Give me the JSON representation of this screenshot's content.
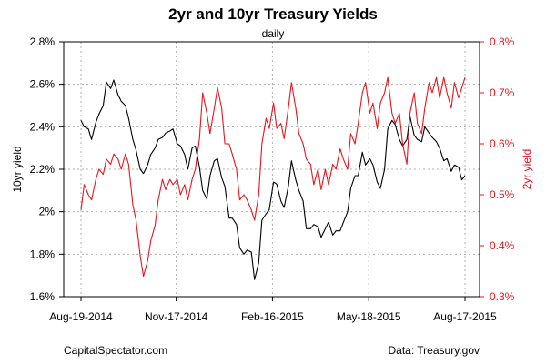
{
  "chart_data": {
    "type": "line",
    "title": "2yr and 10yr Treasury Yields",
    "subtitle": "daily",
    "x_start": "2014-08-19",
    "x_end": "2015-08-17",
    "x_ticks": [
      "Aug-19-2014",
      "Nov-17-2014",
      "Feb-16-2015",
      "May-18-2015",
      "Aug-17-2015"
    ],
    "y_left": {
      "label": "10yr yield",
      "lim": [
        1.6,
        2.8
      ],
      "ticks": [
        1.6,
        1.8,
        2.0,
        2.2,
        2.4,
        2.6,
        2.8
      ],
      "tick_labels": [
        "1.6%",
        "1.8%",
        "2%",
        "2.2%",
        "2.4%",
        "2.6%",
        "2.8%"
      ],
      "color": "#000000"
    },
    "y_right": {
      "label": "2yr yield",
      "lim": [
        0.3,
        0.8
      ],
      "ticks": [
        0.3,
        0.4,
        0.5,
        0.6,
        0.7,
        0.8
      ],
      "tick_labels": [
        "0.3%",
        "0.4%",
        "0.5%",
        "0.6%",
        "0.7%",
        "0.8%"
      ],
      "color": "#e8141c"
    },
    "grid": true,
    "series": [
      {
        "axis": "left",
        "color": "#000000",
        "x": [
          "2014-08-19",
          "2014-08-22",
          "2014-08-26",
          "2014-08-29",
          "2014-09-02",
          "2014-09-05",
          "2014-09-09",
          "2014-09-12",
          "2014-09-16",
          "2014-09-19",
          "2014-09-23",
          "2014-09-26",
          "2014-09-30",
          "2014-10-03",
          "2014-10-07",
          "2014-10-10",
          "2014-10-14",
          "2014-10-17",
          "2014-10-21",
          "2014-10-24",
          "2014-10-28",
          "2014-10-31",
          "2014-11-04",
          "2014-11-07",
          "2014-11-11",
          "2014-11-14",
          "2014-11-18",
          "2014-11-21",
          "2014-11-25",
          "2014-11-28",
          "2014-12-02",
          "2014-12-05",
          "2014-12-09",
          "2014-12-12",
          "2014-12-16",
          "2014-12-19",
          "2014-12-23",
          "2014-12-26",
          "2014-12-30",
          "2015-01-02",
          "2015-01-06",
          "2015-01-09",
          "2015-01-13",
          "2015-01-16",
          "2015-01-20",
          "2015-01-23",
          "2015-01-27",
          "2015-01-30",
          "2015-02-03",
          "2015-02-06",
          "2015-02-10",
          "2015-02-13",
          "2015-02-17",
          "2015-02-20",
          "2015-02-24",
          "2015-02-27",
          "2015-03-03",
          "2015-03-06",
          "2015-03-10",
          "2015-03-13",
          "2015-03-17",
          "2015-03-20",
          "2015-03-24",
          "2015-03-27",
          "2015-03-31",
          "2015-04-03",
          "2015-04-07",
          "2015-04-10",
          "2015-04-14",
          "2015-04-17",
          "2015-04-21",
          "2015-04-24",
          "2015-04-28",
          "2015-05-01",
          "2015-05-05",
          "2015-05-08",
          "2015-05-12",
          "2015-05-15",
          "2015-05-19",
          "2015-05-22",
          "2015-05-26",
          "2015-05-29",
          "2015-06-02",
          "2015-06-05",
          "2015-06-09",
          "2015-06-12",
          "2015-06-16",
          "2015-06-19",
          "2015-06-23",
          "2015-06-26",
          "2015-06-30",
          "2015-07-03",
          "2015-07-07",
          "2015-07-10",
          "2015-07-14",
          "2015-07-17",
          "2015-07-21",
          "2015-07-24",
          "2015-07-28",
          "2015-07-31",
          "2015-08-04",
          "2015-08-07",
          "2015-08-11",
          "2015-08-14",
          "2015-08-17"
        ],
        "values": [
          2.43,
          2.4,
          2.39,
          2.34,
          2.42,
          2.46,
          2.5,
          2.61,
          2.58,
          2.62,
          2.55,
          2.52,
          2.5,
          2.44,
          2.34,
          2.29,
          2.2,
          2.18,
          2.22,
          2.27,
          2.3,
          2.34,
          2.35,
          2.37,
          2.38,
          2.39,
          2.32,
          2.31,
          2.27,
          2.2,
          2.3,
          2.31,
          2.21,
          2.1,
          2.06,
          2.17,
          2.24,
          2.25,
          2.16,
          2.12,
          1.97,
          1.97,
          1.94,
          1.83,
          1.8,
          1.82,
          1.81,
          1.68,
          1.76,
          1.96,
          1.99,
          2.01,
          2.14,
          2.13,
          2.05,
          2.02,
          2.12,
          2.24,
          2.15,
          2.1,
          2.05,
          1.92,
          1.92,
          1.94,
          1.93,
          1.88,
          1.92,
          1.95,
          1.89,
          1.91,
          1.91,
          1.95,
          2.0,
          2.11,
          2.17,
          2.17,
          2.28,
          2.22,
          2.25,
          2.22,
          2.14,
          2.11,
          2.2,
          2.39,
          2.43,
          2.41,
          2.34,
          2.31,
          2.34,
          2.45,
          2.36,
          2.34,
          2.33,
          2.4,
          2.37,
          2.35,
          2.33,
          2.3,
          2.24,
          2.25,
          2.19,
          2.22,
          2.21,
          2.15,
          2.17
        ]
      },
      {
        "axis": "right",
        "color": "#e8141c",
        "x": [
          "2014-08-19",
          "2014-08-22",
          "2014-08-26",
          "2014-08-29",
          "2014-09-02",
          "2014-09-05",
          "2014-09-09",
          "2014-09-12",
          "2014-09-16",
          "2014-09-19",
          "2014-09-23",
          "2014-09-26",
          "2014-09-30",
          "2014-10-03",
          "2014-10-07",
          "2014-10-10",
          "2014-10-14",
          "2014-10-17",
          "2014-10-21",
          "2014-10-24",
          "2014-10-28",
          "2014-10-31",
          "2014-11-04",
          "2014-11-07",
          "2014-11-11",
          "2014-11-14",
          "2014-11-18",
          "2014-11-21",
          "2014-11-25",
          "2014-11-28",
          "2014-12-02",
          "2014-12-05",
          "2014-12-09",
          "2014-12-12",
          "2014-12-16",
          "2014-12-19",
          "2014-12-23",
          "2014-12-26",
          "2014-12-30",
          "2015-01-02",
          "2015-01-06",
          "2015-01-09",
          "2015-01-13",
          "2015-01-16",
          "2015-01-20",
          "2015-01-23",
          "2015-01-27",
          "2015-01-30",
          "2015-02-03",
          "2015-02-06",
          "2015-02-10",
          "2015-02-13",
          "2015-02-17",
          "2015-02-20",
          "2015-02-24",
          "2015-02-27",
          "2015-03-03",
          "2015-03-06",
          "2015-03-10",
          "2015-03-13",
          "2015-03-17",
          "2015-03-20",
          "2015-03-24",
          "2015-03-27",
          "2015-03-31",
          "2015-04-03",
          "2015-04-07",
          "2015-04-10",
          "2015-04-14",
          "2015-04-17",
          "2015-04-21",
          "2015-04-24",
          "2015-04-28",
          "2015-05-01",
          "2015-05-05",
          "2015-05-08",
          "2015-05-12",
          "2015-05-15",
          "2015-05-19",
          "2015-05-22",
          "2015-05-26",
          "2015-05-29",
          "2015-06-02",
          "2015-06-05",
          "2015-06-09",
          "2015-06-12",
          "2015-06-16",
          "2015-06-19",
          "2015-06-23",
          "2015-06-26",
          "2015-06-30",
          "2015-07-03",
          "2015-07-07",
          "2015-07-10",
          "2015-07-14",
          "2015-07-17",
          "2015-07-21",
          "2015-07-24",
          "2015-07-28",
          "2015-07-31",
          "2015-08-04",
          "2015-08-07",
          "2015-08-11",
          "2015-08-14",
          "2015-08-17"
        ],
        "values": [
          0.47,
          0.52,
          0.5,
          0.49,
          0.53,
          0.55,
          0.54,
          0.57,
          0.56,
          0.58,
          0.57,
          0.55,
          0.58,
          0.56,
          0.48,
          0.45,
          0.38,
          0.34,
          0.37,
          0.41,
          0.44,
          0.49,
          0.53,
          0.51,
          0.53,
          0.52,
          0.53,
          0.5,
          0.52,
          0.49,
          0.53,
          0.55,
          0.61,
          0.7,
          0.66,
          0.62,
          0.67,
          0.71,
          0.67,
          0.6,
          0.6,
          0.58,
          0.55,
          0.49,
          0.5,
          0.49,
          0.47,
          0.45,
          0.5,
          0.6,
          0.65,
          0.63,
          0.68,
          0.63,
          0.64,
          0.61,
          0.67,
          0.72,
          0.67,
          0.62,
          0.6,
          0.57,
          0.56,
          0.52,
          0.55,
          0.51,
          0.55,
          0.52,
          0.56,
          0.55,
          0.59,
          0.57,
          0.55,
          0.62,
          0.6,
          0.64,
          0.7,
          0.72,
          0.66,
          0.68,
          0.63,
          0.68,
          0.7,
          0.73,
          0.66,
          0.64,
          0.66,
          0.6,
          0.56,
          0.66,
          0.7,
          0.64,
          0.62,
          0.67,
          0.72,
          0.7,
          0.73,
          0.69,
          0.73,
          0.7,
          0.67,
          0.72,
          0.69,
          0.71,
          0.73
        ]
      }
    ]
  },
  "footer": {
    "left": "CapitalSpectator.com",
    "right": "Data: Treasury.gov"
  }
}
